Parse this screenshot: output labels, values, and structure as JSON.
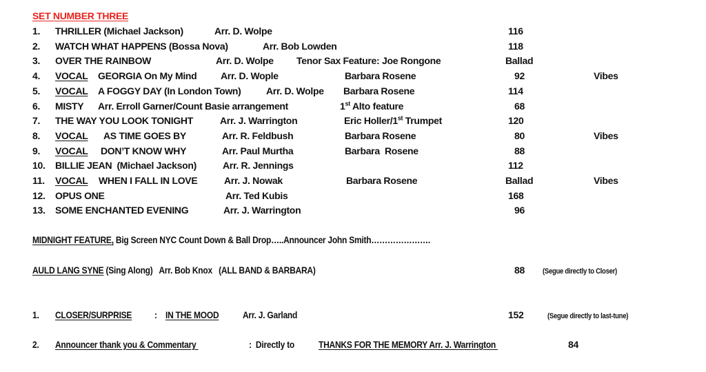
{
  "title": "SET NUMBER THREE",
  "rows": [
    {
      "num": "1.",
      "a": "THRILLER (Michael Jackson)",
      "b": "Arr. D. Wolpe",
      "tempo": "116"
    },
    {
      "num": "2.",
      "a": "WATCH WHAT HAPPENS (Bossa Nova)",
      "b": "Arr. Bob Lowden",
      "tempo": "118"
    },
    {
      "num": "3.",
      "a": "OVER THE RAINBOW",
      "b": "Arr. D. Wolpe",
      "c": "Tenor Sax Feature: Joe Rongone",
      "tempo": "Ballad"
    },
    {
      "num": "4.",
      "v": "VOCAL",
      "a": "GEORGIA On My Mind",
      "b": "Arr. D. Wople",
      "c": "Barbara Rosene",
      "tempo": "92",
      "extra": "Vibes"
    },
    {
      "num": "5.",
      "v": "VOCAL",
      "a": "A FOGGY DAY (In London Town)",
      "b": "Arr. D. Wolpe",
      "c": "Barbara Rosene",
      "tempo": "114"
    },
    {
      "num": "6.",
      "a": "MISTY",
      "b": "Arr. Erroll Garner/Count Basie arrangement",
      "c1": "1",
      "c1sup": "st",
      "c2": " Alto feature",
      "tempo": "68"
    },
    {
      "num": "7.",
      "a": "THE WAY YOU LOOK TONIGHT",
      "b": "Arr. J. Warrington",
      "c1": "Eric Holler/1",
      "c1sup": "st",
      "c2": " Trumpet",
      "tempo": "120"
    },
    {
      "num": "8.",
      "v": "VOCAL",
      "a": "AS TIME GOES BY",
      "b": "Arr. R. Feldbush",
      "c": "Barbara Rosene",
      "tempo": "80",
      "extra": "Vibes"
    },
    {
      "num": "9.",
      "v": "VOCAL",
      "a": "DON’T KNOW WHY",
      "b": "Arr. Paul Murtha",
      "c": "Barbara  Rosene",
      "tempo": "88"
    },
    {
      "num": "10.",
      "a": "BILLIE JEAN  (Michael Jackson)",
      "b": "Arr. R. Jennings",
      "tempo": "112"
    },
    {
      "num": "11.",
      "v": "VOCAL",
      "a": "WHEN I FALL IN LOVE",
      "b": "Arr. J. Nowak",
      "c": "Barbara Rosene",
      "tempo": "Ballad",
      "extra": "Vibes"
    },
    {
      "num": "12.",
      "a": "OPUS ONE",
      "b": "Arr. Ted Kubis",
      "tempo": "168"
    },
    {
      "num": "13.",
      "a": "SOME ENCHANTED EVENING",
      "b": "Arr. J. Warrington",
      "tempo": "96"
    }
  ],
  "midnight": {
    "label": "MIDNIGHT FEATURE,",
    "text": " Big Screen NYC Count Down & Ball Drop…..Announcer John Smith…………………."
  },
  "auld": {
    "label": "AULD LANG SYNE",
    "text": " (Sing Along)   Arr. Bob Knox   (ALL BAND & BARBARA)",
    "tempo": "88",
    "note": "(Segue directly to Closer)"
  },
  "closer": {
    "num": "1.",
    "label": "CLOSER/SURPRISE",
    "sep": ":",
    "tune": "IN THE MOOD",
    "arr": "Arr. J. Garland",
    "tempo": "152",
    "note": "(Segue directly to last-tune)"
  },
  "final": {
    "num": "2.",
    "label": "Announcer thank you & Commentary ",
    "sep": ":  Directly to",
    "tune": "THANKS FOR THE MEMORY Arr. J. Warrington ",
    "tempo": "84"
  }
}
